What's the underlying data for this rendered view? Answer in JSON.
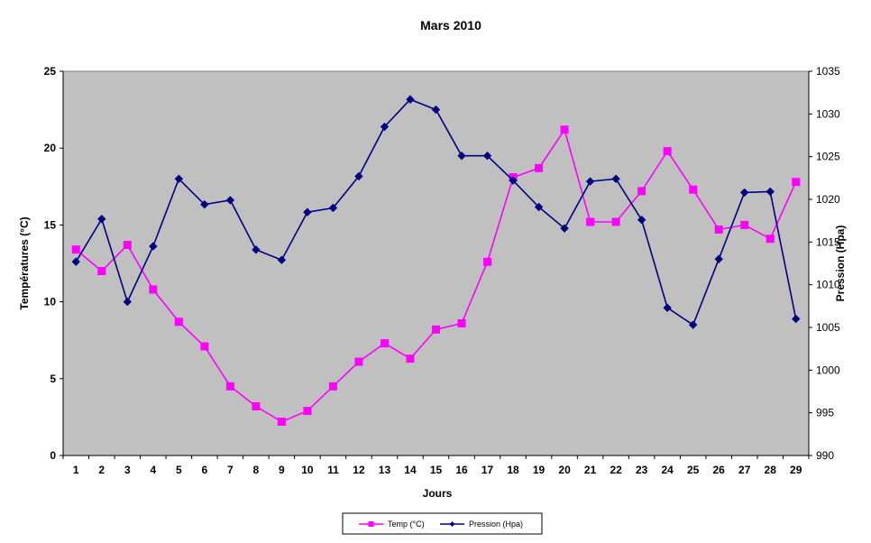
{
  "chart_data": {
    "type": "line",
    "title": "Mars 2010",
    "xlabel": "Jours",
    "ylabel": "Températures (°C)",
    "y2label": "Pression (Hpa)",
    "x": [
      1,
      2,
      3,
      4,
      5,
      6,
      7,
      8,
      9,
      10,
      11,
      12,
      13,
      14,
      15,
      16,
      17,
      18,
      19,
      20,
      21,
      22,
      23,
      24,
      25,
      26,
      27,
      28,
      29
    ],
    "ylim": [
      0,
      25
    ],
    "yticks": [
      0,
      5,
      10,
      15,
      20,
      25
    ],
    "y2lim": [
      990,
      1035
    ],
    "y2ticks": [
      990,
      995,
      1000,
      1005,
      1010,
      1015,
      1020,
      1025,
      1030,
      1035
    ],
    "grid": false,
    "plot_background": "#c0c0c0",
    "legend_position": "bottom",
    "series": [
      {
        "name": "Temp (°C)",
        "axis": "left",
        "color": "#ff00ff",
        "marker": "square",
        "values": [
          13.4,
          12.0,
          13.7,
          10.8,
          8.7,
          7.1,
          4.5,
          3.2,
          2.2,
          2.9,
          4.5,
          6.1,
          7.3,
          6.3,
          8.2,
          8.6,
          12.6,
          18.1,
          18.7,
          21.2,
          15.2,
          15.2,
          17.2,
          19.8,
          17.3,
          14.7,
          15.0,
          14.1,
          17.8
        ]
      },
      {
        "name": "Pression (Hpa)",
        "axis": "right",
        "color": "#000080",
        "marker": "diamond",
        "values": [
          1012.7,
          1017.7,
          1008.0,
          1014.5,
          1022.4,
          1019.4,
          1019.9,
          1014.1,
          1012.9,
          1018.5,
          1019.0,
          1022.7,
          1028.5,
          1031.7,
          1030.5,
          1025.1,
          1025.1,
          1022.2,
          1019.1,
          1016.6,
          1022.1,
          1022.4,
          1017.6,
          1007.3,
          1005.3,
          1013.0,
          1020.8,
          1020.9,
          1006.0
        ]
      }
    ]
  }
}
